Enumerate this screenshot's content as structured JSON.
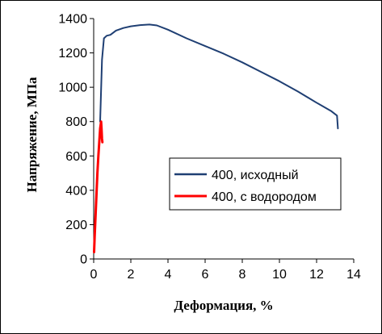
{
  "chart_data": {
    "type": "line",
    "title": "",
    "xlabel": "Деформация, %",
    "ylabel": "Напряжение, МПа",
    "xlim": [
      0,
      14
    ],
    "ylim": [
      0,
      1400
    ],
    "xticks": [
      0,
      2,
      4,
      6,
      8,
      10,
      12,
      14
    ],
    "yticks": [
      0,
      200,
      400,
      600,
      800,
      1000,
      1200,
      1400
    ],
    "grid": false,
    "legend_position": "center-right",
    "series": [
      {
        "name": "400, исходный",
        "color": "#1f3f73",
        "x": [
          0.35,
          0.45,
          0.55,
          0.7,
          0.9,
          1.2,
          1.6,
          2.0,
          2.5,
          3.0,
          3.4,
          4.0,
          5.0,
          6.0,
          7.0,
          8.0,
          9.0,
          10.0,
          11.0,
          12.0,
          12.8,
          13.1,
          13.15
        ],
        "y": [
          800,
          1160,
          1285,
          1300,
          1305,
          1330,
          1345,
          1355,
          1362,
          1365,
          1360,
          1335,
          1285,
          1240,
          1195,
          1145,
          1090,
          1035,
          975,
          910,
          860,
          835,
          760
        ]
      },
      {
        "name": "400, с водородом",
        "color": "#ff0000",
        "x": [
          0.02,
          0.05,
          0.1,
          0.15,
          0.2,
          0.25,
          0.3,
          0.35,
          0.4,
          0.42,
          0.45,
          0.47
        ],
        "y": [
          40,
          130,
          250,
          380,
          500,
          600,
          680,
          760,
          800,
          760,
          700,
          680
        ]
      }
    ]
  }
}
